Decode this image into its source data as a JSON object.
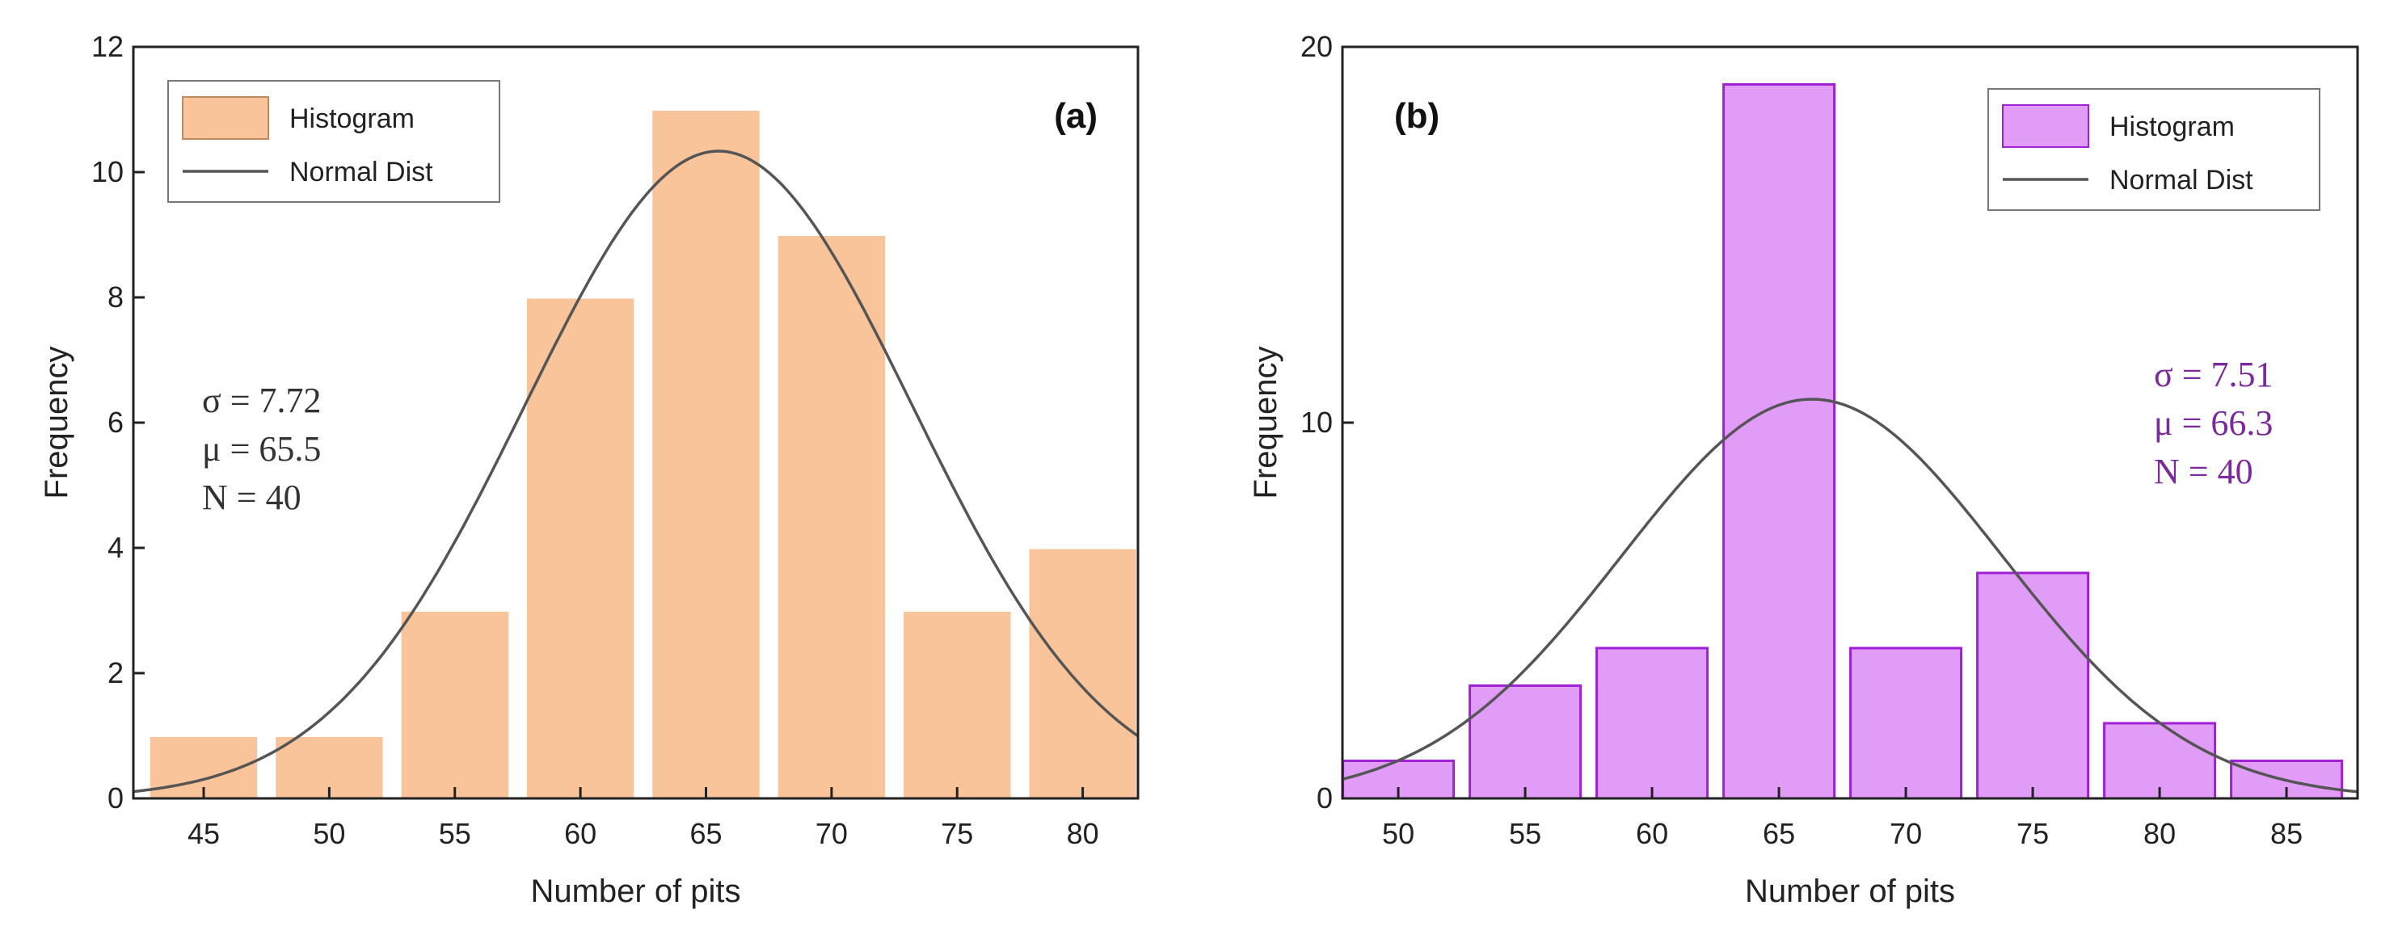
{
  "chart_data": [
    {
      "type": "bar",
      "panel_label": "(a)",
      "xlabel": "Number of pits",
      "ylabel": "Frequency",
      "categories": [
        "45",
        "50",
        "55",
        "60",
        "65",
        "70",
        "75",
        "80"
      ],
      "x": [
        45,
        50,
        55,
        60,
        65,
        70,
        75,
        80
      ],
      "values": [
        1,
        1,
        3,
        8,
        11,
        9,
        3,
        4
      ],
      "xlim": [
        42.2,
        82.2
      ],
      "ylim": [
        0,
        12
      ],
      "yticks": [
        "0",
        "2",
        "4",
        "6",
        "8",
        "10",
        "12"
      ],
      "bar_color": "#f9c49a",
      "bar_edge": "#ffffff",
      "curve_color": "#555555",
      "stat_color": "#333333",
      "normal_dist": {
        "mu": 65.5,
        "sigma": 7.72,
        "n": 40,
        "bin_width": 5
      },
      "legend": {
        "position": "top-left",
        "entries": [
          "Histogram",
          "Normal Dist"
        ]
      },
      "stats": {
        "sigma": "σ = 7.72",
        "mu": "μ = 65.5",
        "n": "N = 40",
        "position": "left"
      }
    },
    {
      "type": "bar",
      "panel_label": "(b)",
      "xlabel": "Number of pits",
      "ylabel": "Frequency",
      "categories": [
        "50",
        "55",
        "60",
        "65",
        "70",
        "75",
        "80",
        "85"
      ],
      "x": [
        50,
        55,
        60,
        65,
        70,
        75,
        80,
        85
      ],
      "values": [
        1,
        3,
        4,
        19,
        4,
        6,
        2,
        1
      ],
      "xlim": [
        47.8,
        87.8
      ],
      "ylim": [
        0,
        20
      ],
      "yticks": [
        "0",
        "10",
        "20"
      ],
      "bar_color": "#e19cf7",
      "bar_edge": "#a020d8",
      "curve_color": "#555555",
      "curve_color_low": "#a020d8",
      "stat_color": "#7a2a9a",
      "normal_dist": {
        "mu": 66.3,
        "sigma": 7.51,
        "n": 40,
        "bin_width": 5
      },
      "legend": {
        "position": "top-right",
        "entries": [
          "Histogram",
          "Normal Dist"
        ]
      },
      "stats": {
        "sigma": "σ = 7.51",
        "mu": "μ = 66.3",
        "n": "N = 40",
        "position": "right"
      }
    }
  ]
}
